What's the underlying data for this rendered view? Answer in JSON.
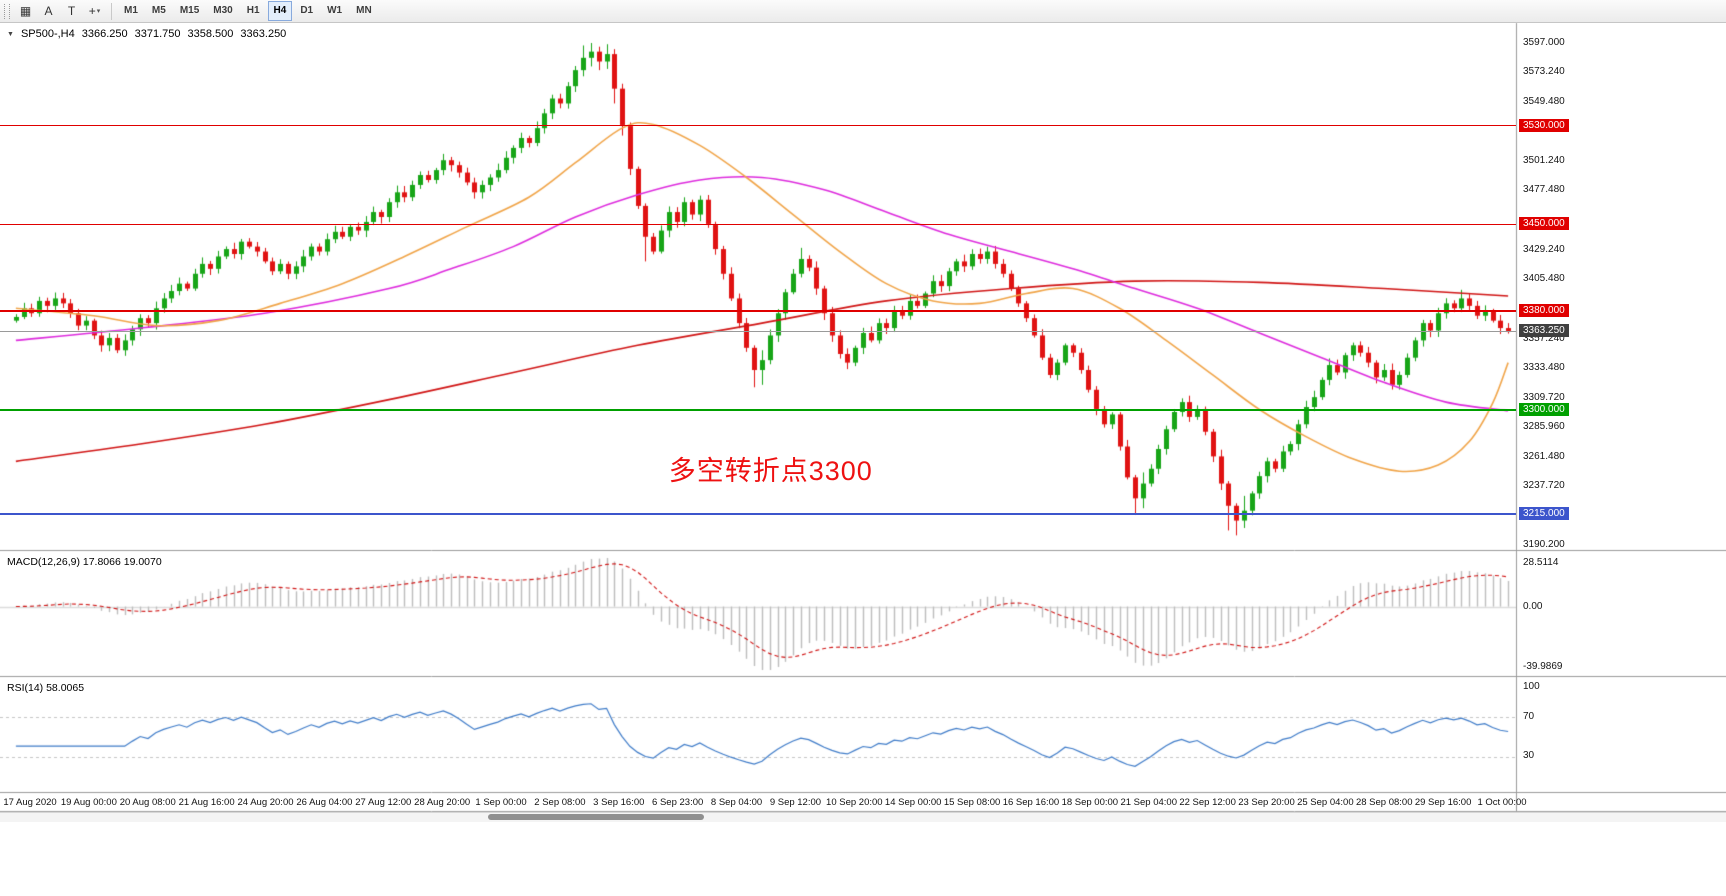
{
  "toolbar": {
    "tools": [
      {
        "name": "new-order-icon",
        "glyph": "▦"
      },
      {
        "name": "annotation-a-icon",
        "glyph": "A"
      },
      {
        "name": "text-tool-icon",
        "glyph": "T"
      },
      {
        "name": "crosshair-tool-icon",
        "glyph": "+",
        "caret_glyph": "▾"
      }
    ],
    "timeframes": [
      "M1",
      "M5",
      "M15",
      "M30",
      "H1",
      "H4",
      "D1",
      "W1",
      "MN"
    ],
    "active_timeframe": "H4"
  },
  "chart": {
    "one_click_glyph": "▼",
    "header": {
      "symbol": "SP500-,H4",
      "open": "3366.250",
      "high": "3371.750",
      "low": "3358.500",
      "close": "3363.250"
    },
    "annotation": {
      "text": "多空转折点3300",
      "color": "#ee1111"
    }
  },
  "indicators": {
    "macd": {
      "header": "MACD(12,26,9) 17.8066 19.0070",
      "axis_top": "28.5114",
      "axis_zero": "0.00",
      "axis_bottom": "-39.9869"
    },
    "rsi": {
      "header": "RSI(14) 58.0065",
      "axis_top": "100",
      "axis_mid": "70",
      "axis_bottom": "30"
    }
  },
  "colors": {
    "bull": "#17a517",
    "bear": "#e01212",
    "ma_fast": "#f0a448",
    "ma_mid": "#dd2add",
    "ma_slow": "#d01414",
    "macd_hist": "#bdbdbd",
    "macd_signal": "#d01414",
    "rsi": "#3e7bc8",
    "current_tag_bg": "#404040",
    "current_line": "#9a9a9a"
  },
  "chart_data": {
    "type": "candlestick",
    "symbol": "SP500-",
    "timeframe": "H4",
    "ohlc_current": {
      "open": 3366.25,
      "high": 3371.75,
      "low": 3358.5,
      "close": 3363.25
    },
    "y_range": [
      3190.2,
      3597.0
    ],
    "y_tick_labels": [
      "3597.000",
      "3573.240",
      "3549.480",
      "3501.240",
      "3477.480",
      "3429.240",
      "3405.480",
      "3357.240",
      "3333.480",
      "3309.720",
      "3285.960",
      "3261.480",
      "3237.720",
      "3190.200"
    ],
    "x_tick_labels": [
      "17 Aug 2020",
      "19 Aug 00:00",
      "20 Aug 08:00",
      "21 Aug 16:00",
      "24 Aug 20:00",
      "26 Aug 04:00",
      "27 Aug 12:00",
      "28 Aug 20:00",
      "1 Sep 00:00",
      "2 Sep 08:00",
      "3 Sep 16:00",
      "6 Sep 23:00",
      "8 Sep 04:00",
      "9 Sep 12:00",
      "10 Sep 20:00",
      "14 Sep 00:00",
      "15 Sep 08:00",
      "16 Sep 16:00",
      "18 Sep 00:00",
      "21 Sep 04:00",
      "22 Sep 12:00",
      "23 Sep 20:00",
      "25 Sep 04:00",
      "28 Sep 08:00",
      "29 Sep 16:00",
      "1 Oct 00:00"
    ],
    "first_open": 3372,
    "closes": [
      3375,
      3382,
      3378,
      3388,
      3384,
      3390,
      3386,
      3378,
      3368,
      3372,
      3360,
      3352,
      3358,
      3348,
      3356,
      3365,
      3374,
      3370,
      3382,
      3390,
      3396,
      3402,
      3398,
      3410,
      3418,
      3414,
      3424,
      3430,
      3426,
      3436,
      3432,
      3428,
      3420,
      3412,
      3418,
      3410,
      3416,
      3424,
      3432,
      3428,
      3438,
      3444,
      3440,
      3448,
      3445,
      3452,
      3460,
      3456,
      3468,
      3476,
      3472,
      3482,
      3490,
      3486,
      3494,
      3502,
      3498,
      3492,
      3484,
      3476,
      3482,
      3488,
      3494,
      3504,
      3512,
      3520,
      3516,
      3528,
      3540,
      3552,
      3548,
      3562,
      3575,
      3585,
      3590,
      3582,
      3588,
      3560,
      3530,
      3495,
      3465,
      3440,
      3428,
      3445,
      3460,
      3452,
      3468,
      3458,
      3470,
      3450,
      3430,
      3410,
      3390,
      3370,
      3350,
      3332,
      3340,
      3360,
      3378,
      3395,
      3410,
      3422,
      3415,
      3398,
      3378,
      3360,
      3345,
      3338,
      3350,
      3362,
      3356,
      3370,
      3366,
      3380,
      3376,
      3388,
      3384,
      3394,
      3404,
      3400,
      3412,
      3420,
      3416,
      3426,
      3422,
      3428,
      3418,
      3410,
      3398,
      3386,
      3374,
      3360,
      3342,
      3328,
      3338,
      3352,
      3346,
      3332,
      3316,
      3300,
      3288,
      3296,
      3270,
      3245,
      3228,
      3240,
      3252,
      3268,
      3284,
      3298,
      3306,
      3294,
      3300,
      3282,
      3262,
      3240,
      3222,
      3210,
      3218,
      3232,
      3246,
      3258,
      3252,
      3266,
      3272,
      3288,
      3302,
      3310,
      3324,
      3336,
      3330,
      3344,
      3352,
      3346,
      3338,
      3326,
      3332,
      3320,
      3328,
      3342,
      3356,
      3370,
      3364,
      3378,
      3386,
      3382,
      3390,
      3384,
      3376,
      3380,
      3372,
      3366,
      3363.25
    ],
    "wick_overrides": {
      "73": [
        3595,
        3570
      ],
      "74": [
        3597,
        3578
      ],
      "75": [
        3594,
        3575
      ],
      "76": [
        3596,
        3576
      ],
      "77": [
        3592,
        3548
      ],
      "78": [
        3564,
        3522
      ],
      "81": [
        3467,
        3420
      ],
      "95": [
        3352,
        3318
      ],
      "96": [
        3348,
        3320
      ],
      "101": [
        3431,
        3407
      ],
      "144": [
        3247,
        3215
      ],
      "145": [
        3249,
        3220
      ],
      "156": [
        3242,
        3202
      ],
      "157": [
        3224,
        3198
      ],
      "158": [
        3230,
        3204
      ],
      "186": [
        3397,
        3379
      ]
    },
    "overlays": {
      "ma_fast_orange": [
        [
          0,
          3382
        ],
        [
          10,
          3376
        ],
        [
          18,
          3368
        ],
        [
          26,
          3372
        ],
        [
          34,
          3386
        ],
        [
          42,
          3402
        ],
        [
          50,
          3424
        ],
        [
          58,
          3448
        ],
        [
          66,
          3472
        ],
        [
          72,
          3500
        ],
        [
          78,
          3528
        ],
        [
          82,
          3531
        ],
        [
          88,
          3514
        ],
        [
          94,
          3488
        ],
        [
          100,
          3458
        ],
        [
          106,
          3428
        ],
        [
          112,
          3402
        ],
        [
          118,
          3388
        ],
        [
          124,
          3386
        ],
        [
          130,
          3394
        ],
        [
          136,
          3398
        ],
        [
          142,
          3382
        ],
        [
          148,
          3356
        ],
        [
          154,
          3328
        ],
        [
          160,
          3300
        ],
        [
          166,
          3278
        ],
        [
          172,
          3260
        ],
        [
          178,
          3250
        ],
        [
          183,
          3255
        ],
        [
          187,
          3274
        ],
        [
          190,
          3305
        ],
        [
          192,
          3338
        ]
      ],
      "ma_mid_magenta": [
        [
          0,
          3356
        ],
        [
          16,
          3366
        ],
        [
          32,
          3378
        ],
        [
          48,
          3398
        ],
        [
          56,
          3414
        ],
        [
          64,
          3432
        ],
        [
          72,
          3456
        ],
        [
          80,
          3474
        ],
        [
          88,
          3486
        ],
        [
          96,
          3488
        ],
        [
          104,
          3478
        ],
        [
          112,
          3460
        ],
        [
          120,
          3442
        ],
        [
          128,
          3428
        ],
        [
          136,
          3414
        ],
        [
          144,
          3398
        ],
        [
          152,
          3382
        ],
        [
          160,
          3362
        ],
        [
          168,
          3342
        ],
        [
          176,
          3322
        ],
        [
          184,
          3306
        ],
        [
          192,
          3299
        ]
      ],
      "ma_slow_red": [
        [
          0,
          3258
        ],
        [
          16,
          3272
        ],
        [
          32,
          3288
        ],
        [
          48,
          3308
        ],
        [
          64,
          3330
        ],
        [
          80,
          3352
        ],
        [
          96,
          3370
        ],
        [
          112,
          3388
        ],
        [
          128,
          3398
        ],
        [
          144,
          3404
        ],
        [
          160,
          3403
        ],
        [
          176,
          3398
        ],
        [
          192,
          3392
        ]
      ]
    },
    "levels": [
      {
        "price": 3530.0,
        "label": "3530.000",
        "color": "#e00000",
        "thickness": 1
      },
      {
        "price": 3450.0,
        "label": "3450.000",
        "color": "#e00000",
        "thickness": 1
      },
      {
        "price": 3380.0,
        "label": "3380.000",
        "color": "#e00000",
        "thickness": 2
      },
      {
        "price": 3300.0,
        "label": "3300.000",
        "color": "#00a000",
        "thickness": 2
      },
      {
        "price": 3215.0,
        "label": "3215.000",
        "color": "#3c55cc",
        "thickness": 2
      }
    ],
    "current_price": 3363.25,
    "annotation_anchor": {
      "bar": 84,
      "price": 3268
    },
    "indicator_panels": [
      {
        "name": "MACD",
        "params": [
          12,
          26,
          9
        ],
        "current_values": [
          17.8066,
          19.007
        ],
        "axis": [
          28.5114,
          0.0,
          -39.9869
        ],
        "derived_from": "closes"
      },
      {
        "name": "RSI",
        "params": [
          14
        ],
        "current_value": 58.0065,
        "axis": [
          100,
          70,
          30
        ],
        "levels": [
          70,
          30
        ],
        "derived_from": "closes"
      }
    ]
  }
}
